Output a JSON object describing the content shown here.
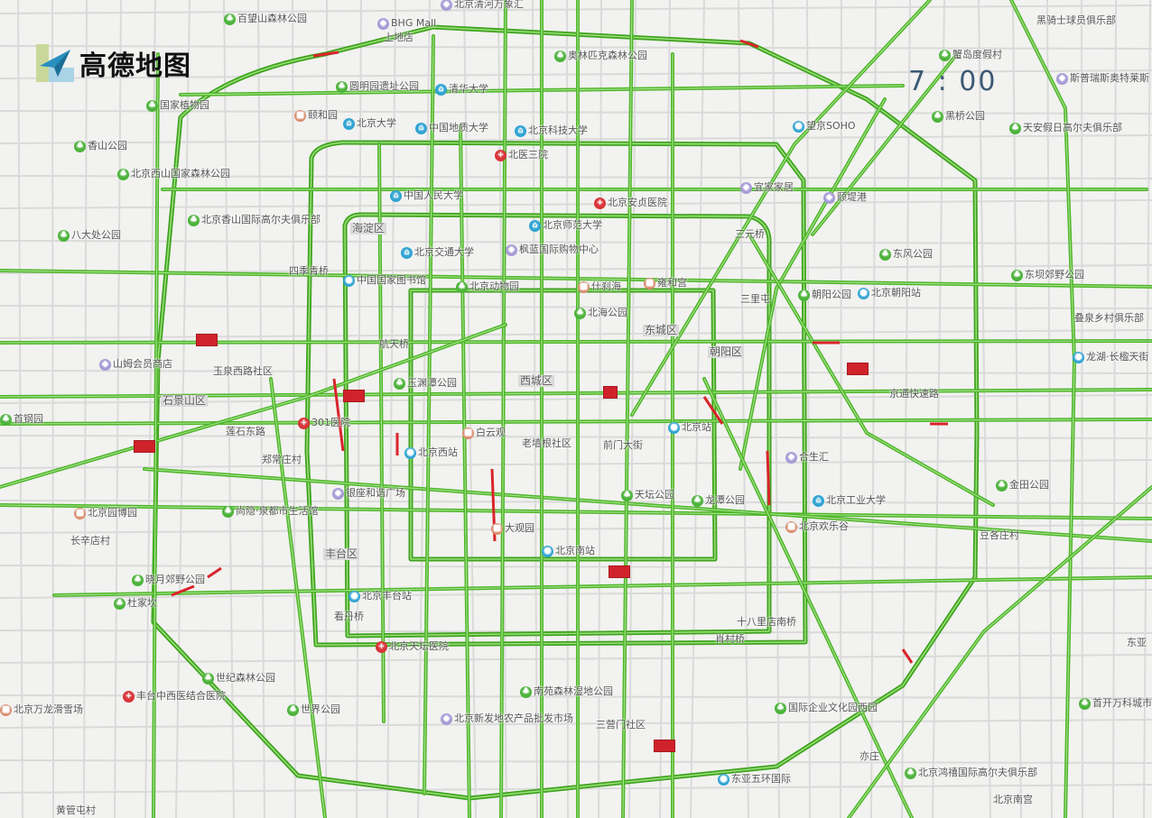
{
  "brand": {
    "logo_text": "高德地图",
    "logo_icon": "paper-plane-icon"
  },
  "clock": {
    "time": "7 : 00"
  },
  "legend_colors": {
    "smooth": "#5cbf2a",
    "congested": "#d9242b",
    "base_road": "#c8c8c8",
    "background": "#f2f2f0"
  },
  "labels": [
    {
      "text": "百望山森林公园",
      "kind": "park"
    },
    {
      "text": "BHG Mall",
      "kind": "mall"
    },
    {
      "text": "上地店",
      "kind": "text"
    },
    {
      "text": "北京清河万象汇",
      "kind": "mall"
    },
    {
      "text": "圆明园遗址公园",
      "kind": "park"
    },
    {
      "text": "清华大学",
      "kind": "school"
    },
    {
      "text": "颐和园",
      "kind": "poi"
    },
    {
      "text": "国家植物园",
      "kind": "park"
    },
    {
      "text": "香山公园",
      "kind": "park"
    },
    {
      "text": "北京大学",
      "kind": "school"
    },
    {
      "text": "中国地质大学",
      "kind": "school"
    },
    {
      "text": "北京科技大学",
      "kind": "school"
    },
    {
      "text": "北医三院",
      "kind": "hospital"
    },
    {
      "text": "北京西山国家森林公园",
      "kind": "park"
    },
    {
      "text": "中国人民大学",
      "kind": "school"
    },
    {
      "text": "北京香山国际高尔夫俱乐部",
      "kind": "park"
    },
    {
      "text": "八大处公园",
      "kind": "park"
    },
    {
      "text": "海淀区",
      "kind": "district"
    },
    {
      "text": "北京交通大学",
      "kind": "school"
    },
    {
      "text": "枫蓝国际购物中心",
      "kind": "mall"
    },
    {
      "text": "北京师范大学",
      "kind": "school"
    },
    {
      "text": "北京安贞医院",
      "kind": "hospital"
    },
    {
      "text": "奥林匹克森林公园",
      "kind": "park"
    },
    {
      "text": "望京SOHO",
      "kind": "station"
    },
    {
      "text": "宜家家居",
      "kind": "mall"
    },
    {
      "text": "颐堤港",
      "kind": "mall"
    },
    {
      "text": "三元桥",
      "kind": "text"
    },
    {
      "text": "黑骑士球员俱乐部",
      "kind": "text"
    },
    {
      "text": "蟹岛度假村",
      "kind": "park"
    },
    {
      "text": "斯普瑞斯奥特莱斯",
      "kind": "mall"
    },
    {
      "text": "黑桥公园",
      "kind": "park"
    },
    {
      "text": "天安假日高尔夫俱乐部",
      "kind": "park"
    },
    {
      "text": "东风公园",
      "kind": "park"
    },
    {
      "text": "东坝郊野公园",
      "kind": "park"
    },
    {
      "text": "四季青桥",
      "kind": "text"
    },
    {
      "text": "中国国家图书馆",
      "kind": "station"
    },
    {
      "text": "北京动物园",
      "kind": "park"
    },
    {
      "text": "什刹海",
      "kind": "poi"
    },
    {
      "text": "雍和宫",
      "kind": "poi"
    },
    {
      "text": "朝阳公园",
      "kind": "park"
    },
    {
      "text": "北京朝阳站",
      "kind": "station"
    },
    {
      "text": "三里屯",
      "kind": "text"
    },
    {
      "text": "北海公园",
      "kind": "park"
    },
    {
      "text": "东城区",
      "kind": "district"
    },
    {
      "text": "朝阳区",
      "kind": "district"
    },
    {
      "text": "叠泉乡村俱乐部",
      "kind": "text"
    },
    {
      "text": "龙湖·长楹天街",
      "kind": "station"
    },
    {
      "text": "山姆会员商店",
      "kind": "mall"
    },
    {
      "text": "航天桥",
      "kind": "text"
    },
    {
      "text": "玉泉西路社区",
      "kind": "text"
    },
    {
      "text": "玉渊潭公园",
      "kind": "park"
    },
    {
      "text": "西城区",
      "kind": "district"
    },
    {
      "text": "石景山区",
      "kind": "district"
    },
    {
      "text": "京通快速路",
      "kind": "text"
    },
    {
      "text": "首钢园",
      "kind": "park"
    },
    {
      "text": "301医院",
      "kind": "hospital"
    },
    {
      "text": "莲石东路",
      "kind": "text"
    },
    {
      "text": "白云观",
      "kind": "poi"
    },
    {
      "text": "北京西站",
      "kind": "station"
    },
    {
      "text": "老墙根社区",
      "kind": "text"
    },
    {
      "text": "前门大街",
      "kind": "text"
    },
    {
      "text": "北京站",
      "kind": "station"
    },
    {
      "text": "合生汇",
      "kind": "mall"
    },
    {
      "text": "郑常庄村",
      "kind": "text"
    },
    {
      "text": "银座和谐广场",
      "kind": "mall"
    },
    {
      "text": "天坛公园",
      "kind": "park"
    },
    {
      "text": "龙潭公园",
      "kind": "park"
    },
    {
      "text": "北京工业大学",
      "kind": "school"
    },
    {
      "text": "金田公园",
      "kind": "park"
    },
    {
      "text": "北京园博园",
      "kind": "poi"
    },
    {
      "text": "尚隐·泉都市生活馆",
      "kind": "park"
    },
    {
      "text": "大观园",
      "kind": "poi"
    },
    {
      "text": "北京欢乐谷",
      "kind": "poi"
    },
    {
      "text": "豆各庄村",
      "kind": "text"
    },
    {
      "text": "长辛店村",
      "kind": "text"
    },
    {
      "text": "丰台区",
      "kind": "district"
    },
    {
      "text": "北京南站",
      "kind": "station"
    },
    {
      "text": "晓月郊野公园",
      "kind": "park"
    },
    {
      "text": "北京丰台站",
      "kind": "station"
    },
    {
      "text": "杜家坎",
      "kind": "park"
    },
    {
      "text": "看丹桥",
      "kind": "text"
    },
    {
      "text": "北京天坛医院",
      "kind": "hospital"
    },
    {
      "text": "十八里店南桥",
      "kind": "text"
    },
    {
      "text": "肖村桥",
      "kind": "text"
    },
    {
      "text": "东亚",
      "kind": "text"
    },
    {
      "text": "世纪森林公园",
      "kind": "park"
    },
    {
      "text": "南苑森林湿地公园",
      "kind": "park"
    },
    {
      "text": "丰台中西医结合医院",
      "kind": "hospital"
    },
    {
      "text": "世界公园",
      "kind": "park"
    },
    {
      "text": "北京新发地农产品批发市场",
      "kind": "mall"
    },
    {
      "text": "三营门社区",
      "kind": "text"
    },
    {
      "text": "国际企业文化园西园",
      "kind": "park"
    },
    {
      "text": "首开万科城市之光",
      "kind": "park"
    },
    {
      "text": "北京鸿禧国际高尔夫俱乐部",
      "kind": "park"
    },
    {
      "text": "东亚五环国际",
      "kind": "station"
    },
    {
      "text": "北京万龙滑雪场",
      "kind": "poi"
    },
    {
      "text": "亦庄",
      "kind": "text"
    },
    {
      "text": "黄管屯村",
      "kind": "text"
    },
    {
      "text": "北京南宫",
      "kind": "text"
    }
  ]
}
